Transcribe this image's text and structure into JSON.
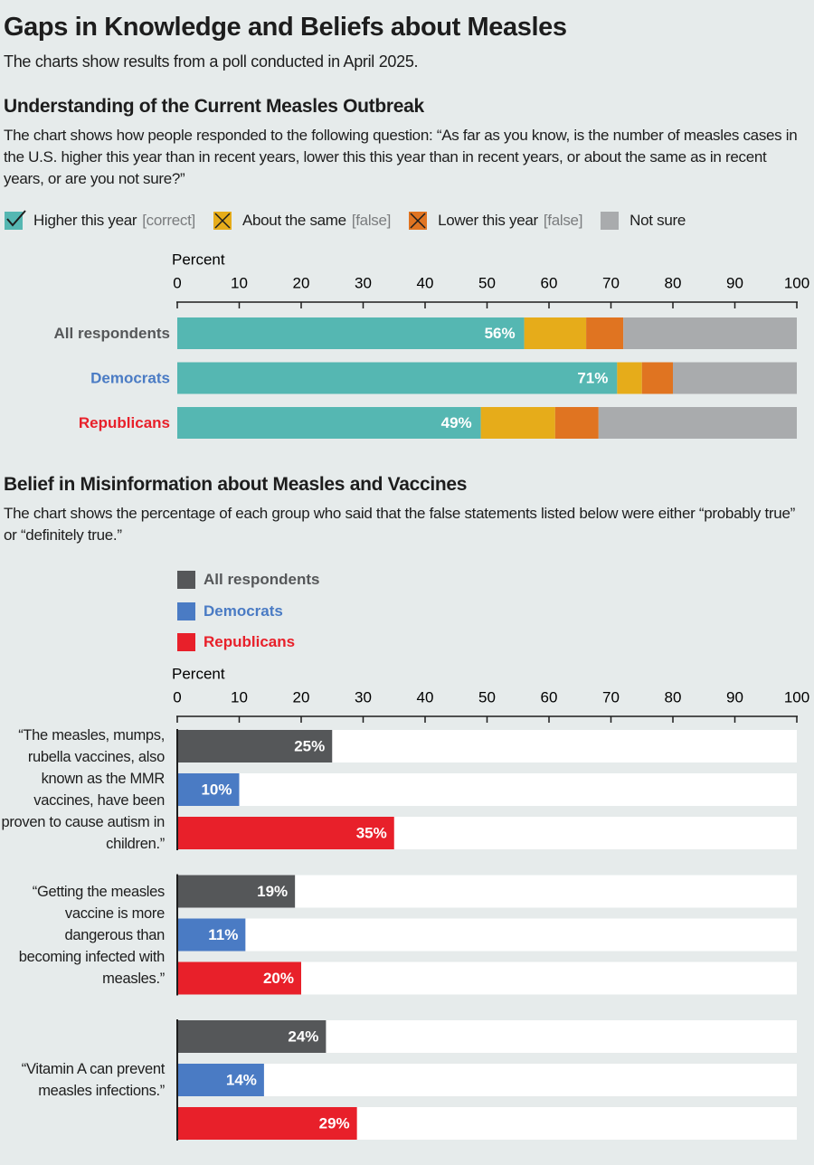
{
  "title": "Gaps in Knowledge and Beliefs about Measles",
  "subtitle": "The charts show results from a poll conducted in April 2025.",
  "chart_data": [
    {
      "type": "stacked_bar",
      "title": "Understanding of the Current Measles Outbreak",
      "subtitle": "The chart shows how people responded to the following question: “As far as you know, is the number of measles cases in the U.S. higher this year than in recent years, lower this this year than in recent years, or about the same as in recent years, or are you not sure?”",
      "x_label": "Percent",
      "xlim": [
        0,
        100
      ],
      "xticks": [
        0,
        10,
        20,
        30,
        40,
        50,
        60,
        70,
        80,
        90,
        100
      ],
      "categories": [
        "All respondents",
        "Democrats",
        "Republicans"
      ],
      "category_colors": [
        "#555759",
        "#4a7bc4",
        "#e8202a"
      ],
      "series": [
        {
          "name": "Higher this year",
          "tag": "[correct]",
          "color": "#55b7b2",
          "values": [
            56,
            71,
            49
          ],
          "value_labels": [
            "56%",
            "71%",
            "49%"
          ]
        },
        {
          "name": "About the same",
          "tag": "[false]",
          "color": "#e6ac1a",
          "values": [
            10,
            4,
            12
          ]
        },
        {
          "name": "Lower this year",
          "tag": "[false]",
          "color": "#e07421",
          "values": [
            6,
            5,
            7
          ]
        },
        {
          "name": "Not sure",
          "color": "#a9abad",
          "values": [
            28,
            20,
            32
          ]
        }
      ]
    },
    {
      "type": "grouped_bar",
      "title": "Belief in Misinformation about Measles and Vaccines",
      "subtitle": "The chart shows the percentage of each group who said that the false statements listed below were either “probably true” or “definitely true.”",
      "x_label": "Percent",
      "xlim": [
        0,
        100
      ],
      "xticks": [
        0,
        10,
        20,
        30,
        40,
        50,
        60,
        70,
        80,
        90,
        100
      ],
      "categories": [
        "“The measles, mumps, rubella vaccines, also known as the MMR vaccines, have been proven to cause autism in children.”",
        "“Getting the measles vaccine is more dangerous than becoming infected with measles.”",
        "“Vitamin A can prevent measles infections.”"
      ],
      "series": [
        {
          "name": "All respondents",
          "color": "#555759",
          "values": [
            25,
            19,
            24
          ],
          "value_labels": [
            "25%",
            "19%",
            "24%"
          ]
        },
        {
          "name": "Democrats",
          "color": "#4a7bc4",
          "values": [
            10,
            11,
            14
          ],
          "value_labels": [
            "10%",
            "11%",
            "14%"
          ]
        },
        {
          "name": "Republicans",
          "color": "#e8202a",
          "values": [
            35,
            20,
            29
          ],
          "value_labels": [
            "35%",
            "20%",
            "29%"
          ]
        }
      ]
    }
  ]
}
